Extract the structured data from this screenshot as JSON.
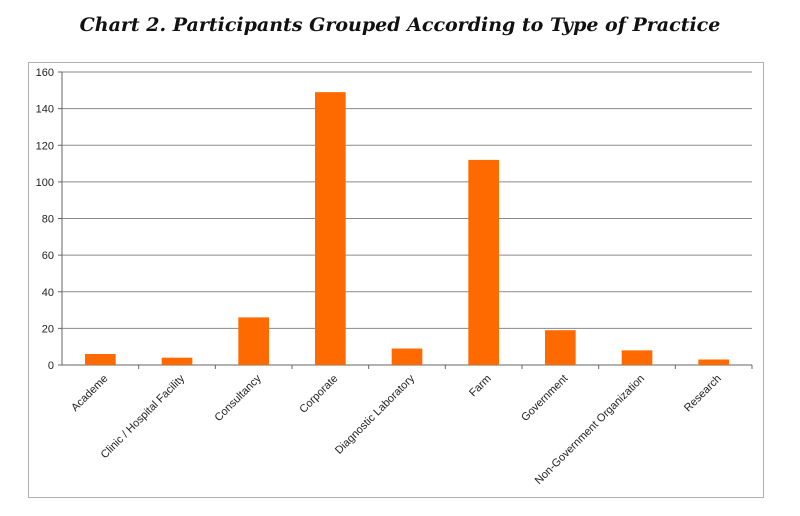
{
  "chart_data": {
    "type": "bar",
    "title": "Chart 2. Participants Grouped According to Type of Practice",
    "categories": [
      "Academe",
      "Clinic / Hospital Facility",
      "Consultancy",
      "Corporate",
      "Diagnostic Laboratory",
      "Farm",
      "Government",
      "Non-Government Organization",
      "Research"
    ],
    "values": [
      6,
      4,
      26,
      149,
      9,
      112,
      19,
      8,
      3
    ],
    "ylim": [
      0,
      160
    ],
    "yticks": [
      0,
      20,
      40,
      60,
      80,
      100,
      120,
      140,
      160
    ],
    "xlabel": "",
    "ylabel": "",
    "grid": true,
    "bar_color": "#ff6a00"
  }
}
